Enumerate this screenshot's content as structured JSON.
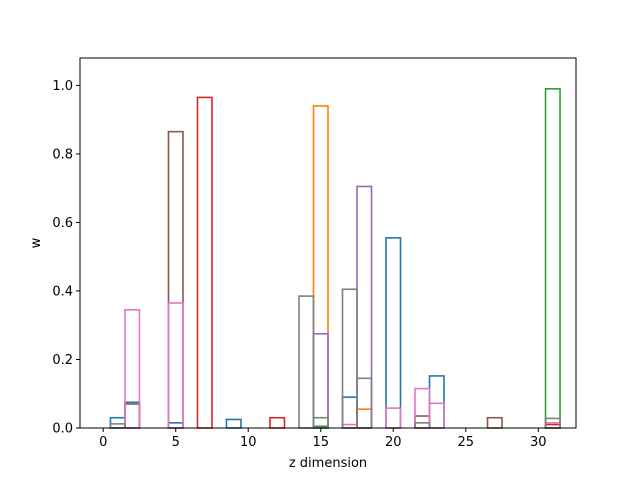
{
  "chart_data": {
    "type": "bar",
    "style": "step-outline",
    "xlabel": "z dimension",
    "ylabel": "w",
    "xlim": [
      -1.6,
      32.6
    ],
    "ylim": [
      0,
      1.08
    ],
    "xticks": [
      0,
      5,
      10,
      15,
      20,
      25,
      30
    ],
    "yticks": [
      0.0,
      0.2,
      0.4,
      0.6,
      0.8,
      1.0
    ],
    "bin_width": 1,
    "grid": false,
    "series": [
      {
        "color": "#1f77b4",
        "values": {
          "1": 0.03,
          "2": 0.075,
          "5": 0.015,
          "9": 0.025,
          "17": 0.09,
          "20": 0.555,
          "23": 0.152
        }
      },
      {
        "color": "#ff7f0e",
        "values": {
          "15": 0.94,
          "18": 0.055
        }
      },
      {
        "color": "#2ca02c",
        "values": {
          "15": 0.005,
          "31": 0.99
        }
      },
      {
        "color": "#d62728",
        "values": {
          "7": 0.965,
          "12": 0.03,
          "31": 0.01
        }
      },
      {
        "color": "#9467bd",
        "values": {
          "15": 0.275,
          "18": 0.705
        }
      },
      {
        "color": "#8c564b",
        "values": {
          "2": 0.07,
          "5": 0.865,
          "22": 0.035,
          "27": 0.03
        }
      },
      {
        "color": "#e377c2",
        "values": {
          "2": 0.345,
          "5": 0.365,
          "17": 0.01,
          "20": 0.058,
          "22": 0.115,
          "23": 0.072,
          "31": 0.015
        }
      },
      {
        "color": "#7f7f7f",
        "values": {
          "1": 0.012,
          "14": 0.385,
          "15": 0.03,
          "17": 0.405,
          "18": 0.145,
          "22": 0.015,
          "31": 0.028
        }
      }
    ]
  }
}
